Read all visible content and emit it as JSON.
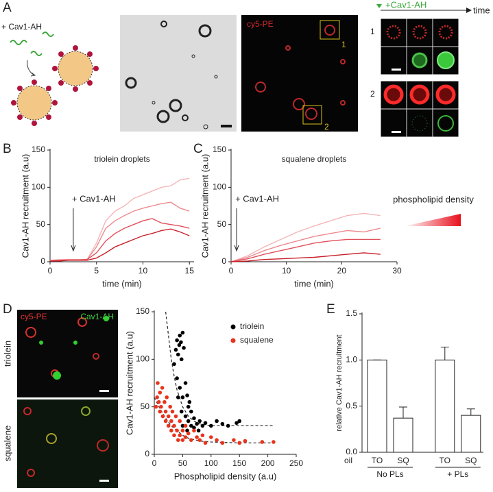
{
  "panel_labels": [
    "A",
    "B",
    "C",
    "D",
    "E"
  ],
  "panel_a": {
    "label": "+ Cav1-AH",
    "image_label": "cy5-PE",
    "roi_labels": [
      "1",
      "2"
    ],
    "series_label": "+Cav1-AH",
    "axis_label": "time",
    "row_labels": [
      "1",
      "2"
    ]
  },
  "panel_d": {
    "channel_labels": [
      "cy5-PE",
      "Cav1-AH"
    ],
    "row_labels": [
      "triolein",
      "squalene"
    ]
  },
  "chart_data": [
    {
      "type": "line",
      "title": "triolein droplets",
      "annotation": "+ Cav1-AH",
      "xlabel": "time (min)",
      "ylabel": "Cav1-AH  recruitment  (a.u)",
      "x": [
        0,
        1,
        2,
        3,
        4,
        5,
        6,
        7,
        8,
        9,
        10,
        11,
        12,
        13,
        14,
        15
      ],
      "series": [
        {
          "color": "#f4b6b8",
          "values": [
            2,
            3,
            3,
            3,
            3,
            25,
            55,
            68,
            75,
            85,
            90,
            95,
            100,
            102,
            110,
            112
          ]
        },
        {
          "color": "#ec8a8e",
          "values": [
            2,
            2,
            3,
            3,
            3,
            20,
            45,
            55,
            62,
            68,
            72,
            75,
            78,
            80,
            72,
            68
          ]
        },
        {
          "color": "#e0505a",
          "values": [
            1,
            2,
            2,
            2,
            3,
            12,
            28,
            38,
            45,
            50,
            55,
            58,
            52,
            50,
            48,
            45
          ]
        },
        {
          "color": "#c8202a",
          "values": [
            1,
            1,
            2,
            2,
            2,
            5,
            12,
            20,
            25,
            30,
            35,
            38,
            42,
            44,
            40,
            35
          ]
        }
      ],
      "xlim": [
        0,
        15.5
      ],
      "xticks": [
        0,
        5,
        10,
        15
      ],
      "ylim": [
        0,
        150
      ],
      "yticks": [
        0,
        50,
        100,
        150
      ]
    },
    {
      "type": "line",
      "title": "squalene droplets",
      "annotation": "+ Cav1-AH",
      "gradient_label": "phospholipid density",
      "xlabel": "time (min)",
      "ylabel": "Cav1-AH  recruitment  (a.u)",
      "x": [
        0,
        3,
        6,
        9,
        12,
        15,
        18,
        21,
        24,
        27
      ],
      "series": [
        {
          "color": "#f4b6b8",
          "values": [
            0,
            8,
            20,
            30,
            40,
            48,
            55,
            62,
            65,
            62
          ]
        },
        {
          "color": "#ec8a8e",
          "values": [
            0,
            6,
            15,
            22,
            28,
            34,
            38,
            42,
            40,
            45
          ]
        },
        {
          "color": "#e0505a",
          "values": [
            0,
            4,
            10,
            15,
            20,
            25,
            28,
            30,
            30,
            30
          ]
        },
        {
          "color": "#c8202a",
          "values": [
            0,
            1,
            3,
            4,
            5,
            6,
            8,
            10,
            12,
            10
          ]
        }
      ],
      "xlim": [
        0,
        30
      ],
      "xticks": [
        0,
        10,
        20,
        30
      ],
      "ylim": [
        0,
        150
      ],
      "yticks": [
        0,
        50,
        100,
        150
      ]
    },
    {
      "type": "scatter",
      "xlabel": "Phospholipid density (a.u)",
      "ylabel": "Cav1-AH  recruitment  (a.u)",
      "series": [
        {
          "name": "triolein",
          "color": "#000000",
          "x": [
            35,
            38,
            40,
            42,
            44,
            45,
            47,
            48,
            50,
            52,
            40,
            45,
            50,
            55,
            58,
            60,
            62,
            65,
            42,
            48,
            55,
            60,
            65,
            70,
            75,
            80,
            85,
            90,
            100,
            110,
            120,
            130,
            145,
            150,
            70,
            78,
            50,
            58
          ],
          "values": [
            95,
            110,
            120,
            105,
            115,
            125,
            118,
            100,
            128,
            112,
            80,
            70,
            60,
            75,
            62,
            50,
            55,
            45,
            60,
            45,
            40,
            35,
            30,
            38,
            32,
            35,
            30,
            33,
            30,
            35,
            32,
            30,
            33,
            35,
            28,
            25,
            30,
            25
          ]
        },
        {
          "name": "squalene",
          "color": "#e8341c",
          "x": [
            5,
            6,
            8,
            10,
            10,
            12,
            14,
            15,
            18,
            20,
            20,
            22,
            25,
            25,
            28,
            30,
            30,
            32,
            35,
            35,
            38,
            40,
            42,
            45,
            45,
            50,
            50,
            55,
            55,
            60,
            65,
            70,
            75,
            80,
            85,
            90,
            100,
            110,
            120,
            140,
            150,
            160,
            190,
            210,
            3
          ],
          "values": [
            60,
            75,
            55,
            65,
            45,
            50,
            70,
            40,
            55,
            45,
            35,
            60,
            40,
            30,
            50,
            35,
            25,
            45,
            30,
            20,
            40,
            25,
            15,
            35,
            20,
            25,
            15,
            30,
            18,
            22,
            15,
            25,
            18,
            15,
            20,
            12,
            18,
            15,
            12,
            15,
            12,
            14,
            13,
            13,
            50
          ]
        }
      ],
      "fits": [
        {
          "color": "#333333",
          "x": [
            20,
            25,
            30,
            35,
            40,
            50,
            60,
            70,
            80,
            100,
            150,
            210
          ],
          "values": [
            150,
            125,
            100,
            82,
            68,
            50,
            40,
            35,
            32,
            30,
            30,
            30
          ]
        },
        {
          "color": "#333333",
          "x": [
            0,
            10,
            20,
            30,
            40,
            50,
            60,
            80,
            100,
            150,
            210
          ],
          "values": [
            60,
            48,
            38,
            30,
            25,
            20,
            17,
            14,
            13,
            12,
            12
          ]
        }
      ],
      "xlim": [
        0,
        250
      ],
      "xticks": [
        0,
        50,
        100,
        150,
        200,
        250
      ],
      "ylim": [
        0,
        150
      ],
      "yticks": [
        0,
        50,
        100,
        150
      ]
    },
    {
      "type": "bar",
      "ylabel": "relative Cav1-AH recruitment",
      "category_axis_label": "oil",
      "categories": [
        "TO",
        "SQ",
        "TO",
        "SQ"
      ],
      "groups": [
        "No PLs",
        "+ PLs"
      ],
      "values": [
        1.0,
        0.37,
        1.0,
        0.4
      ],
      "errors": [
        0,
        0.12,
        0.14,
        0.07
      ],
      "color": "#ffffff",
      "ylim": [
        0,
        1.5
      ],
      "yticks": [
        {
          "value": 0,
          "label": "0.0"
        },
        {
          "value": 0.5,
          "label": "0.5"
        },
        {
          "value": 1,
          "label": "1.0"
        },
        {
          "value": 1.5,
          "label": "1.5"
        }
      ]
    }
  ]
}
